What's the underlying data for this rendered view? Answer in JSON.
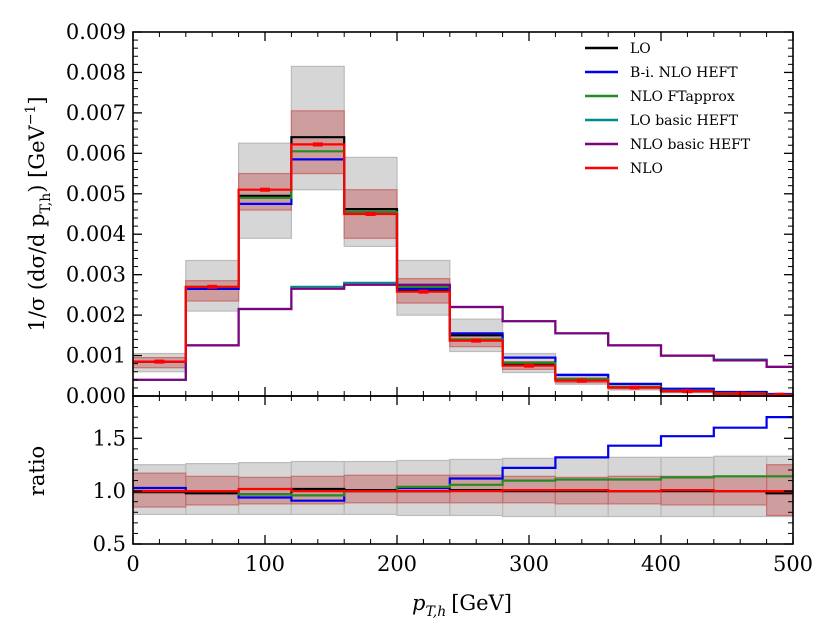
{
  "chart_data": {
    "type": "line",
    "subtype": "step-histogram-with-ratio",
    "bin_edges": [
      0,
      40,
      80,
      120,
      160,
      200,
      240,
      280,
      320,
      360,
      400,
      440,
      480,
      500
    ],
    "xlabel_main": "p",
    "xlabel_sub": "T,h",
    "xlabel_unit": "[GeV]",
    "xlim": [
      0,
      500
    ],
    "x_ticks": [
      "0",
      "100",
      "200",
      "300",
      "400",
      "500"
    ],
    "top_panel": {
      "ylabel": "1/σ (dσ/d p",
      "ylabel_sub": "T,h",
      "ylabel_unit": ") [GeV",
      "ylabel_sup": "−1",
      "ylabel_end": "]",
      "ylim": [
        0,
        0.009
      ],
      "y_ticks": [
        "0.000",
        "0.001",
        "0.002",
        "0.003",
        "0.004",
        "0.005",
        "0.006",
        "0.007",
        "0.008",
        "0.009"
      ],
      "series": [
        {
          "name": "LO",
          "color": "#000000",
          "values": [
            0.00085,
            0.00265,
            0.00495,
            0.0064,
            0.00462,
            0.0026,
            0.0015,
            0.0008,
            0.00042,
            0.00022,
            0.00012,
            6e-05,
            3e-05
          ]
        },
        {
          "name": "B-i. NLO HEFT",
          "color": "#0000ee",
          "values": [
            0.00085,
            0.00265,
            0.00475,
            0.00585,
            0.00455,
            0.00265,
            0.00155,
            0.00095,
            0.00052,
            0.0003,
            0.00018,
            0.0001,
            5e-05
          ]
        },
        {
          "name": "NLO FTapprox",
          "color": "#228b22",
          "values": [
            0.00085,
            0.0027,
            0.0049,
            0.00605,
            0.00455,
            0.0027,
            0.0014,
            0.00082,
            0.00042,
            0.00023,
            0.00013,
            7e-05,
            3e-05
          ]
        },
        {
          "name": "LO basic HEFT",
          "color": "#008b8b",
          "values": [
            0.0004,
            0.00125,
            0.00215,
            0.0027,
            0.0028,
            0.00275,
            0.0022,
            0.00185,
            0.00155,
            0.00125,
            0.001,
            0.0009,
            0.00072
          ]
        },
        {
          "name": "NLO basic HEFT",
          "color": "#800080",
          "values": [
            0.0004,
            0.00125,
            0.00215,
            0.00265,
            0.00275,
            0.00275,
            0.0022,
            0.00185,
            0.00155,
            0.00125,
            0.001,
            0.00088,
            0.00072
          ]
        },
        {
          "name": "NLO",
          "color": "#ff0000",
          "values": [
            0.00085,
            0.0027,
            0.0051,
            0.00622,
            0.0045,
            0.00258,
            0.00137,
            0.00075,
            0.00038,
            0.00021,
            0.00012,
            6e-05,
            3e-05
          ]
        }
      ],
      "bands": [
        {
          "name": "LO scale band",
          "color": "#bbbbbb",
          "opacity": 0.6,
          "low": [
            0.0006,
            0.0021,
            0.0039,
            0.0051,
            0.0037,
            0.002,
            0.0011,
            0.00058,
            0.00029,
            0.00015,
            8e-05,
            4e-05,
            2e-05
          ],
          "high": [
            0.00105,
            0.00335,
            0.00625,
            0.00815,
            0.0059,
            0.00335,
            0.0019,
            0.00105,
            0.00055,
            0.0003,
            0.00016,
            8e-05,
            4e-05
          ]
        },
        {
          "name": "NLO scale band",
          "color": "#c87070",
          "opacity": 0.55,
          "low": [
            0.0007,
            0.00235,
            0.0046,
            0.0055,
            0.0039,
            0.0023,
            0.00122,
            0.00066,
            0.00033,
            0.00018,
            0.0001,
            5e-05,
            2e-05
          ],
          "high": [
            0.00095,
            0.00285,
            0.0055,
            0.00705,
            0.0051,
            0.0029,
            0.00155,
            0.00085,
            0.00044,
            0.00024,
            0.00014,
            7e-05,
            4e-05
          ]
        }
      ],
      "error_bars": {
        "series": "NLO",
        "half_width": [
          3e-05,
          3e-05,
          4e-05,
          5e-05,
          4e-05,
          3e-05,
          2e-05,
          2e-05,
          1e-05,
          1e-05,
          1e-05,
          1e-05,
          1e-05
        ]
      },
      "legend_position": "top-right"
    },
    "bottom_panel": {
      "ylabel": "ratio",
      "ylim": [
        0.5,
        1.9
      ],
      "y_ticks": [
        "0.5",
        "1.0",
        "1.5"
      ],
      "series": [
        {
          "name": "LO",
          "color": "#000000",
          "values": [
            0.99,
            0.98,
            0.97,
            1.02,
            1.01,
            1.0,
            1.01,
            1.0,
            1.0,
            1.0,
            1.0,
            1.0,
            0.98
          ]
        },
        {
          "name": "B-i. NLO HEFT",
          "color": "#0000ee",
          "values": [
            1.03,
            1.0,
            0.94,
            0.91,
            1.0,
            1.03,
            1.12,
            1.22,
            1.32,
            1.43,
            1.52,
            1.6,
            1.7
          ]
        },
        {
          "name": "NLO FTapprox",
          "color": "#228b22",
          "values": [
            1.0,
            1.0,
            0.97,
            0.96,
            1.0,
            1.04,
            1.06,
            1.1,
            1.11,
            1.11,
            1.13,
            1.14,
            1.14
          ]
        },
        {
          "name": "NLO",
          "color": "#ff0000",
          "values": [
            1.0,
            1.0,
            1.02,
            1.0,
            1.0,
            1.0,
            1.0,
            1.01,
            1.01,
            1.0,
            1.01,
            1.0,
            1.0
          ]
        }
      ],
      "bands": [
        {
          "name": "LO ratio band",
          "color": "#bbbbbb",
          "opacity": 0.6,
          "low": [
            0.78,
            0.78,
            0.78,
            0.78,
            0.78,
            0.77,
            0.77,
            0.76,
            0.76,
            0.76,
            0.76,
            0.76,
            0.76
          ],
          "high": [
            1.25,
            1.26,
            1.27,
            1.28,
            1.28,
            1.29,
            1.3,
            1.31,
            1.31,
            1.32,
            1.32,
            1.33,
            1.33
          ]
        },
        {
          "name": "NLO ratio band",
          "color": "#c87070",
          "opacity": 0.55,
          "low": [
            0.85,
            0.87,
            0.88,
            0.88,
            0.89,
            0.89,
            0.89,
            0.89,
            0.88,
            0.88,
            0.87,
            0.87,
            0.77
          ],
          "high": [
            1.17,
            1.14,
            1.13,
            1.14,
            1.15,
            1.15,
            1.15,
            1.14,
            1.13,
            1.14,
            1.14,
            1.14,
            1.25
          ]
        }
      ]
    }
  }
}
